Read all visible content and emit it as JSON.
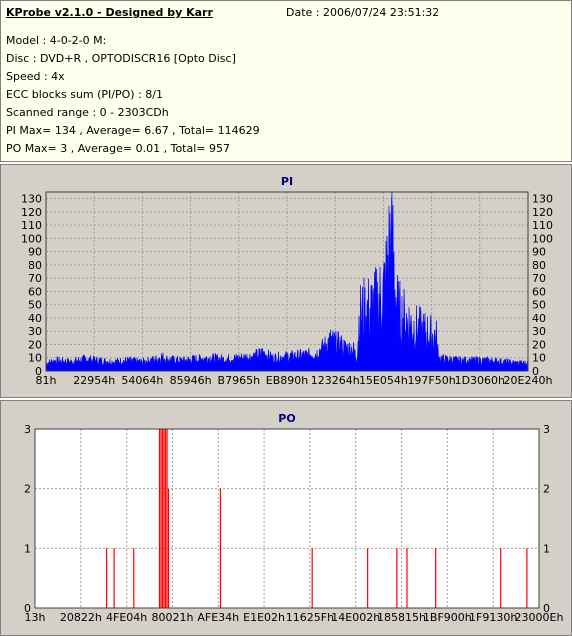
{
  "header": {
    "app_title": "KProbe v2.1.0 - Designed by Karr",
    "date": "Date : 2006/07/24 23:51:32",
    "lines": [
      "Model : 4-0-2-0 M:",
      "Disc : DVD+R , OPTODISCR16 [Opto Disc]",
      "Speed : 4x",
      "ECC blocks sum (PI/PO) : 8/1",
      "Scanned range : 0 - 2303CDh",
      "PI Max= 134 , Average= 6.67 , Total= 114629",
      "PO Max= 3 , Average= 0.01 , Total= 957"
    ]
  },
  "chart_data": [
    {
      "type": "area",
      "title": "PI",
      "ylim": [
        0,
        135
      ],
      "yticks": [
        0,
        10,
        20,
        30,
        40,
        50,
        60,
        70,
        80,
        90,
        100,
        110,
        120,
        130
      ],
      "x_tick_labels": [
        "81h",
        "22954h",
        "54064h",
        "85946h",
        "B7965h",
        "EB890h",
        "123264h",
        "15E054h",
        "197F50h",
        "1D3060h",
        "20E240h"
      ],
      "colors": {
        "series": "#0000ff",
        "plot_bg": "#d4d0c8",
        "grid": "#a0a0a0"
      },
      "grid": true,
      "profile": [
        [
          0.0,
          6
        ],
        [
          0.02,
          8
        ],
        [
          0.05,
          7
        ],
        [
          0.08,
          9
        ],
        [
          0.11,
          8
        ],
        [
          0.14,
          7
        ],
        [
          0.17,
          8
        ],
        [
          0.2,
          7
        ],
        [
          0.23,
          9
        ],
        [
          0.24,
          11
        ],
        [
          0.25,
          9
        ],
        [
          0.28,
          8
        ],
        [
          0.31,
          9
        ],
        [
          0.34,
          10
        ],
        [
          0.37,
          9
        ],
        [
          0.4,
          10
        ],
        [
          0.43,
          11
        ],
        [
          0.45,
          14
        ],
        [
          0.47,
          10
        ],
        [
          0.5,
          11
        ],
        [
          0.53,
          12
        ],
        [
          0.56,
          13
        ],
        [
          0.58,
          20
        ],
        [
          0.59,
          24
        ],
        [
          0.6,
          22
        ],
        [
          0.61,
          21
        ],
        [
          0.62,
          18
        ],
        [
          0.63,
          17
        ],
        [
          0.645,
          16
        ],
        [
          0.65,
          55
        ],
        [
          0.66,
          60
        ],
        [
          0.67,
          62
        ],
        [
          0.68,
          65
        ],
        [
          0.69,
          70
        ],
        [
          0.7,
          80
        ],
        [
          0.705,
          90
        ],
        [
          0.71,
          110
        ],
        [
          0.715,
          134
        ],
        [
          0.72,
          120
        ],
        [
          0.725,
          80
        ],
        [
          0.73,
          60
        ],
        [
          0.74,
          55
        ],
        [
          0.75,
          50
        ],
        [
          0.76,
          45
        ],
        [
          0.77,
          42
        ],
        [
          0.78,
          40
        ],
        [
          0.79,
          38
        ],
        [
          0.8,
          36
        ],
        [
          0.81,
          34
        ],
        [
          0.815,
          10
        ],
        [
          0.83,
          9
        ],
        [
          0.86,
          8
        ],
        [
          0.89,
          8
        ],
        [
          0.92,
          8
        ],
        [
          0.95,
          7
        ],
        [
          0.98,
          6
        ],
        [
          1.0,
          6
        ]
      ]
    },
    {
      "type": "bar",
      "title": "PO",
      "ylim": [
        0,
        3
      ],
      "yticks": [
        0,
        1,
        2,
        3
      ],
      "x_tick_labels": [
        "13h",
        "20822h",
        "4FE04h",
        "80021h",
        "AFE34h",
        "E1E02h",
        "11625Fh",
        "14E002h",
        "185815h",
        "1BF900h",
        "1F9130h",
        "23000Eh"
      ],
      "colors": {
        "series": "#ff0000",
        "plot_bg": "#ffffff",
        "grid": "#a0a0a0"
      },
      "grid": true,
      "bars": [
        [
          0.142,
          1
        ],
        [
          0.157,
          1
        ],
        [
          0.196,
          1
        ],
        [
          0.247,
          3
        ],
        [
          0.25,
          3
        ],
        [
          0.253,
          3
        ],
        [
          0.256,
          3
        ],
        [
          0.259,
          3
        ],
        [
          0.262,
          3
        ],
        [
          0.265,
          2
        ],
        [
          0.368,
          2
        ],
        [
          0.55,
          1
        ],
        [
          0.66,
          1
        ],
        [
          0.718,
          1
        ],
        [
          0.738,
          1
        ],
        [
          0.795,
          1
        ],
        [
          0.924,
          1
        ],
        [
          0.976,
          1
        ]
      ]
    }
  ]
}
